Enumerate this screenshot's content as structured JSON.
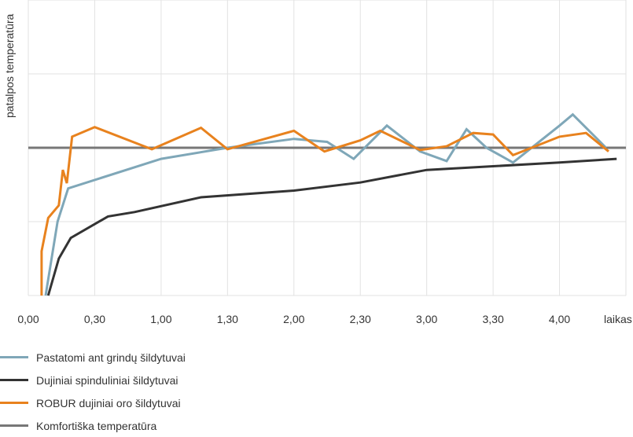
{
  "chart_data": {
    "type": "line",
    "ylabel": "patalpos temperatūra",
    "xlabel": "laikas",
    "x_ticks": [
      "0,00",
      "0,30",
      "1,00",
      "1,30",
      "2,00",
      "2,30",
      "3,00",
      "3,30",
      "4,00"
    ],
    "x_range": [
      0,
      4.5
    ],
    "y_range": [
      0,
      4
    ],
    "grid": true,
    "legend_position": "bottom-left",
    "series": [
      {
        "name": "Pastatomi ant grindų šildytuvai",
        "color": "#7fa7b8",
        "points": [
          [
            0.13,
            0
          ],
          [
            0.22,
            1
          ],
          [
            0.3,
            1.45
          ],
          [
            1.0,
            1.85
          ],
          [
            1.5,
            2.0
          ],
          [
            2.0,
            2.12
          ],
          [
            2.25,
            2.08
          ],
          [
            2.45,
            1.85
          ],
          [
            2.7,
            2.3
          ],
          [
            2.95,
            1.95
          ],
          [
            3.15,
            1.82
          ],
          [
            3.3,
            2.25
          ],
          [
            3.45,
            2.0
          ],
          [
            3.65,
            1.8
          ],
          [
            4.0,
            2.3
          ],
          [
            4.1,
            2.45
          ],
          [
            4.35,
            2.0
          ]
        ]
      },
      {
        "name": "Dujiniai spinduliniai šildytuvai",
        "color": "#333333",
        "points": [
          [
            0.15,
            0
          ],
          [
            0.23,
            0.5
          ],
          [
            0.32,
            0.78
          ],
          [
            0.6,
            1.07
          ],
          [
            0.8,
            1.13
          ],
          [
            1.3,
            1.33
          ],
          [
            2.0,
            1.42
          ],
          [
            2.5,
            1.53
          ],
          [
            3.0,
            1.7
          ],
          [
            3.5,
            1.75
          ],
          [
            4.0,
            1.8
          ],
          [
            4.43,
            1.85
          ]
        ]
      },
      {
        "name": "ROBUR dujiniai oro šildytuvai",
        "color": "#e8821e",
        "points": [
          [
            0.1,
            0
          ],
          [
            0.1,
            0.6
          ],
          [
            0.15,
            1.05
          ],
          [
            0.23,
            1.22
          ],
          [
            0.26,
            1.7
          ],
          [
            0.29,
            1.52
          ],
          [
            0.33,
            2.15
          ],
          [
            0.5,
            2.28
          ],
          [
            0.93,
            1.98
          ],
          [
            1.3,
            2.27
          ],
          [
            1.5,
            1.98
          ],
          [
            2.0,
            2.23
          ],
          [
            2.23,
            1.95
          ],
          [
            2.5,
            2.1
          ],
          [
            2.65,
            2.23
          ],
          [
            2.95,
            1.97
          ],
          [
            3.15,
            2.02
          ],
          [
            3.35,
            2.2
          ],
          [
            3.5,
            2.18
          ],
          [
            3.65,
            1.9
          ],
          [
            4.0,
            2.15
          ],
          [
            4.2,
            2.2
          ],
          [
            4.37,
            1.95
          ]
        ]
      },
      {
        "name": "Komfortiška temperatūra",
        "color": "#777777",
        "points": [
          [
            0,
            2
          ],
          [
            4.5,
            2
          ]
        ]
      }
    ]
  }
}
